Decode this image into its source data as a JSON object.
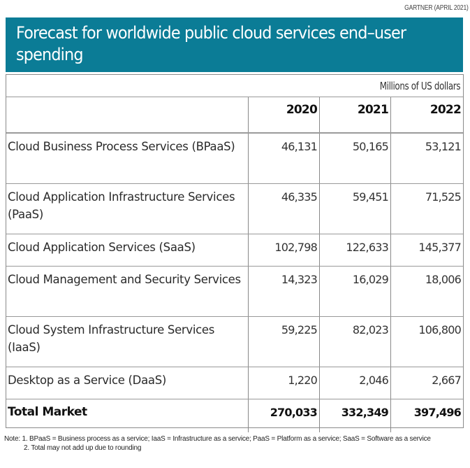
{
  "source": "GARTNER (APRIL 2021)",
  "title": "Forecast for worldwide public cloud services end–user spending",
  "units": "Millions of US dollars",
  "colors": {
    "banner": "#0b7c96",
    "banner_text": "#ffffff"
  },
  "table": {
    "columns": [
      "",
      "2020",
      "2021",
      "2022"
    ],
    "rows": [
      {
        "label": "Cloud Business Process Services (BPaaS)",
        "v2020": "46,131",
        "v2021": "50,165",
        "v2022": "53,121"
      },
      {
        "label": "Cloud Application Infrastructure Services (PaaS)",
        "v2020": "46,335",
        "v2021": "59,451",
        "v2022": "71,525"
      },
      {
        "label": "Cloud Application Services (SaaS)",
        "v2020": "102,798",
        "v2021": "122,633",
        "v2022": "145,377"
      },
      {
        "label": "Cloud Management and Security Services",
        "v2020": "14,323",
        "v2021": "16,029",
        "v2022": "18,006"
      },
      {
        "label": "Cloud System Infrastructure Services (IaaS)",
        "v2020": "59,225",
        "v2021": "82,023",
        "v2022": "106,800"
      },
      {
        "label": "Desktop as a Service (DaaS)",
        "v2020": "1,220",
        "v2021": "2,046",
        "v2022": "2,667"
      }
    ],
    "total": {
      "label": "Total Market",
      "v2020": "270,033",
      "v2021": "332,349",
      "v2022": "397,496"
    }
  },
  "notes": {
    "note1": "Note: 1. BPaaS = Business process as a service; IaaS = Infrastructure as a service; PaaS = Platform as a service; SaaS =  Software as a service",
    "note2": "2. Total may not add up due to rounding"
  }
}
